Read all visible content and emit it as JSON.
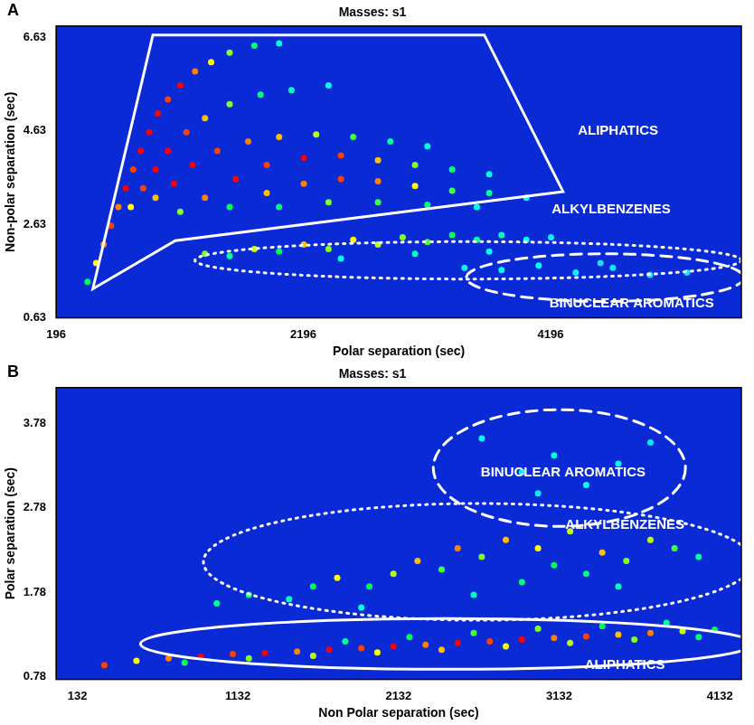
{
  "chart_data": [
    {
      "type": "scatter",
      "panel": "A",
      "title": "Masses: s1",
      "x_label": "Polar separation (sec)",
      "y_label": "Non-polar separation (sec)",
      "xlim": [
        196,
        5740
      ],
      "ylim": [
        0.63,
        6.87
      ],
      "xticks": [
        196,
        2196,
        4196
      ],
      "yticks": [
        0.63,
        2.63,
        4.63,
        6.63
      ],
      "grid": false,
      "peaks": [
        [
          450,
          1.4,
          60
        ],
        [
          520,
          1.8,
          80
        ],
        [
          580,
          2.2,
          90
        ],
        [
          640,
          2.6,
          95
        ],
        [
          700,
          3.0,
          90
        ],
        [
          760,
          3.4,
          100
        ],
        [
          820,
          3.8,
          95
        ],
        [
          880,
          4.2,
          100
        ],
        [
          950,
          4.6,
          100
        ],
        [
          1020,
          5.0,
          100
        ],
        [
          1100,
          5.3,
          95
        ],
        [
          1200,
          5.6,
          100
        ],
        [
          1320,
          5.9,
          90
        ],
        [
          1450,
          6.1,
          80
        ],
        [
          1600,
          6.3,
          70
        ],
        [
          1800,
          6.45,
          55
        ],
        [
          2000,
          6.5,
          40
        ],
        [
          800,
          3.0,
          80
        ],
        [
          900,
          3.4,
          95
        ],
        [
          1000,
          3.8,
          100
        ],
        [
          1100,
          4.2,
          100
        ],
        [
          1250,
          4.6,
          95
        ],
        [
          1400,
          4.9,
          85
        ],
        [
          1600,
          5.2,
          70
        ],
        [
          1850,
          5.4,
          55
        ],
        [
          2100,
          5.5,
          45
        ],
        [
          2400,
          5.6,
          35
        ],
        [
          1000,
          3.2,
          85
        ],
        [
          1150,
          3.5,
          100
        ],
        [
          1300,
          3.9,
          100
        ],
        [
          1500,
          4.2,
          95
        ],
        [
          1750,
          4.4,
          90
        ],
        [
          2000,
          4.5,
          85
        ],
        [
          2300,
          4.55,
          75
        ],
        [
          2600,
          4.5,
          65
        ],
        [
          2900,
          4.4,
          50
        ],
        [
          3200,
          4.3,
          40
        ],
        [
          1200,
          2.9,
          70
        ],
        [
          1400,
          3.2,
          90
        ],
        [
          1650,
          3.6,
          100
        ],
        [
          1900,
          3.9,
          95
        ],
        [
          2200,
          4.05,
          100
        ],
        [
          2500,
          4.1,
          95
        ],
        [
          2800,
          4.0,
          85
        ],
        [
          3100,
          3.9,
          70
        ],
        [
          3400,
          3.8,
          55
        ],
        [
          3700,
          3.7,
          40
        ],
        [
          1600,
          3.0,
          60
        ],
        [
          1900,
          3.3,
          85
        ],
        [
          2200,
          3.5,
          90
        ],
        [
          2500,
          3.6,
          95
        ],
        [
          2800,
          3.55,
          90
        ],
        [
          3100,
          3.45,
          80
        ],
        [
          3400,
          3.35,
          65
        ],
        [
          3700,
          3.3,
          50
        ],
        [
          4000,
          3.2,
          35
        ],
        [
          2000,
          3.0,
          55
        ],
        [
          2400,
          3.1,
          70
        ],
        [
          2800,
          3.1,
          65
        ],
        [
          3200,
          3.05,
          55
        ],
        [
          3600,
          3.0,
          40
        ],
        [
          1400,
          2.0,
          70
        ],
        [
          1600,
          1.95,
          50
        ],
        [
          1800,
          2.1,
          75
        ],
        [
          2000,
          2.05,
          60
        ],
        [
          2200,
          2.2,
          85
        ],
        [
          2400,
          2.1,
          70
        ],
        [
          2600,
          2.3,
          80
        ],
        [
          2800,
          2.2,
          75
        ],
        [
          3000,
          2.35,
          70
        ],
        [
          3200,
          2.25,
          65
        ],
        [
          3400,
          2.4,
          60
        ],
        [
          3600,
          2.3,
          50
        ],
        [
          3800,
          2.4,
          45
        ],
        [
          4000,
          2.3,
          35
        ],
        [
          4200,
          2.35,
          30
        ],
        [
          2500,
          1.9,
          40
        ],
        [
          3100,
          2.0,
          45
        ],
        [
          3700,
          2.05,
          35
        ],
        [
          3500,
          1.7,
          30
        ],
        [
          3800,
          1.65,
          40
        ],
        [
          4100,
          1.75,
          35
        ],
        [
          4400,
          1.6,
          30
        ],
        [
          4700,
          1.7,
          25
        ],
        [
          5000,
          1.55,
          25
        ],
        [
          5300,
          1.6,
          20
        ],
        [
          4600,
          1.8,
          20
        ]
      ],
      "regions": [
        {
          "label": "ALIPHATICS",
          "shape": "polygon",
          "line_style": "solid",
          "color": "#ffffff",
          "vertices": [
            [
              493,
              1.25
            ],
            [
              979,
              6.68
            ],
            [
              3660,
              6.68
            ],
            [
              4297,
              3.33
            ],
            [
              1160,
              2.28
            ]
          ]
        },
        {
          "label": "ALKYLBENZENES",
          "shape": "ellipse",
          "line_style": "dotted",
          "color": "#ffffff",
          "center": [
            3529,
            1.86
          ],
          "radii": [
            2210,
            0.4
          ]
        },
        {
          "label": "BINUCLEAR AROMATICS",
          "shape": "ellipse",
          "line_style": "dashed",
          "color": "#ffffff",
          "center": [
            4638,
            1.49
          ],
          "radii": [
            1123,
            0.51
          ]
        }
      ]
    },
    {
      "type": "scatter",
      "panel": "B",
      "title": "Masses: s1",
      "x_label": "Non Polar separation (sec)",
      "y_label": "Polar separation (sec)",
      "xlim": [
        0,
        4266
      ],
      "ylim": [
        0.75,
        4.2
      ],
      "xticks": [
        132,
        1132,
        2132,
        3132,
        4132
      ],
      "yticks": [
        0.78,
        1.78,
        2.78,
        3.78
      ],
      "grid": false,
      "peaks": [
        [
          300,
          0.92,
          95
        ],
        [
          500,
          0.97,
          80
        ],
        [
          700,
          1.0,
          90
        ],
        [
          900,
          1.02,
          100
        ],
        [
          1100,
          1.05,
          95
        ],
        [
          1300,
          1.06,
          100
        ],
        [
          1500,
          1.08,
          90
        ],
        [
          1700,
          1.1,
          100
        ],
        [
          1900,
          1.12,
          95
        ],
        [
          2100,
          1.14,
          100
        ],
        [
          2300,
          1.16,
          90
        ],
        [
          2500,
          1.18,
          100
        ],
        [
          2700,
          1.2,
          95
        ],
        [
          2900,
          1.22,
          100
        ],
        [
          3100,
          1.24,
          90
        ],
        [
          3300,
          1.26,
          95
        ],
        [
          3500,
          1.28,
          85
        ],
        [
          3700,
          1.3,
          90
        ],
        [
          3900,
          1.32,
          75
        ],
        [
          4100,
          1.34,
          60
        ],
        [
          800,
          0.95,
          60
        ],
        [
          1200,
          1.0,
          70
        ],
        [
          1600,
          1.03,
          75
        ],
        [
          2000,
          1.07,
          80
        ],
        [
          2400,
          1.1,
          85
        ],
        [
          2800,
          1.14,
          80
        ],
        [
          3200,
          1.18,
          75
        ],
        [
          3600,
          1.22,
          70
        ],
        [
          4000,
          1.25,
          55
        ],
        [
          1800,
          1.2,
          50
        ],
        [
          2200,
          1.25,
          60
        ],
        [
          2600,
          1.3,
          65
        ],
        [
          3000,
          1.35,
          70
        ],
        [
          3400,
          1.38,
          60
        ],
        [
          3800,
          1.42,
          50
        ],
        [
          1000,
          1.65,
          50
        ],
        [
          1200,
          1.75,
          55
        ],
        [
          1450,
          1.7,
          45
        ],
        [
          1600,
          1.85,
          60
        ],
        [
          1750,
          1.95,
          80
        ],
        [
          1950,
          1.85,
          60
        ],
        [
          2100,
          2.0,
          75
        ],
        [
          2250,
          2.15,
          85
        ],
        [
          2400,
          2.05,
          65
        ],
        [
          2500,
          2.3,
          90
        ],
        [
          2650,
          2.2,
          70
        ],
        [
          2800,
          2.4,
          85
        ],
        [
          2900,
          1.9,
          55
        ],
        [
          3000,
          2.3,
          80
        ],
        [
          3100,
          2.1,
          60
        ],
        [
          3200,
          2.5,
          75
        ],
        [
          3300,
          2.0,
          55
        ],
        [
          3400,
          2.25,
          85
        ],
        [
          3550,
          2.15,
          70
        ],
        [
          3700,
          2.4,
          75
        ],
        [
          3850,
          2.3,
          65
        ],
        [
          4000,
          2.2,
          50
        ],
        [
          1900,
          1.6,
          40
        ],
        [
          2600,
          1.75,
          45
        ],
        [
          3500,
          1.85,
          45
        ],
        [
          2650,
          3.6,
          35
        ],
        [
          2900,
          3.2,
          30
        ],
        [
          3100,
          3.4,
          40
        ],
        [
          3300,
          3.05,
          35
        ],
        [
          3500,
          3.3,
          30
        ],
        [
          3700,
          3.55,
          25
        ],
        [
          3000,
          2.95,
          25
        ]
      ],
      "regions": [
        {
          "label": "ALIPHATICS",
          "shape": "ellipse",
          "line_style": "solid",
          "color": "#ffffff",
          "center": [
            2432,
            1.17
          ],
          "radii": [
            1907,
            0.3
          ]
        },
        {
          "label": "ALKYLBENZENES",
          "shape": "ellipse",
          "line_style": "dotted",
          "color": "#ffffff",
          "center": [
            2628,
            2.14
          ],
          "radii": [
            1711,
            0.69
          ]
        },
        {
          "label": "BINUCLEAR AROMATICS",
          "shape": "ellipse",
          "line_style": "dashed",
          "color": "#ffffff",
          "center": [
            3133,
            3.25
          ],
          "radii": [
            785,
            0.69
          ]
        }
      ]
    }
  ]
}
